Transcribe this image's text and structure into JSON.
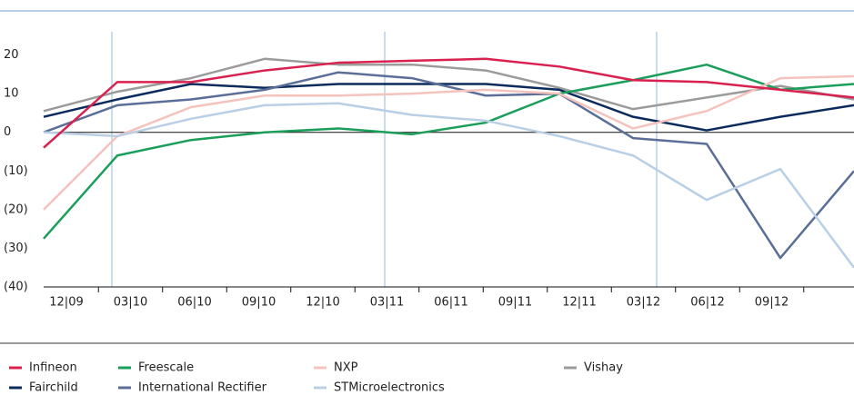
{
  "chart_data": {
    "type": "line",
    "categories": [
      "12|09",
      "03|10",
      "06|10",
      "09|10",
      "12|10",
      "03|11",
      "06|11",
      "09|11",
      "12|11",
      "03|12",
      "06|12",
      "09|12"
    ],
    "ylim": [
      -40,
      26
    ],
    "yticks": [
      20,
      10,
      0,
      {
        "value": -10,
        "label": "(10)"
      },
      {
        "value": -20,
        "label": "(20)"
      },
      {
        "value": -30,
        "label": "(30)"
      },
      {
        "value": -40,
        "label": "(40)"
      }
    ],
    "series": [
      {
        "name": "Infineon",
        "color": "#d9214f",
        "values": [
          -4,
          13,
          13,
          16,
          18,
          18.5,
          19,
          17,
          13.5,
          13,
          11,
          9
        ]
      },
      {
        "name": "Freescale",
        "color": "#1a9e5a",
        "values": [
          -27.5,
          -6,
          -2,
          0,
          1,
          -0.5,
          2.5,
          10,
          13.5,
          17.5,
          11,
          12.5
        ]
      },
      {
        "name": "NXP",
        "color": "#f5c3bd",
        "values": [
          -20,
          -1,
          6.5,
          9.5,
          9.5,
          10,
          11,
          10,
          1,
          5.5,
          14,
          14.5
        ]
      },
      {
        "name": "Vishay",
        "color": "#9b9b9b",
        "values": [
          5.5,
          10.5,
          14,
          19,
          17.5,
          17.5,
          16,
          11.5,
          6,
          9,
          12,
          8.5
        ]
      },
      {
        "name": "Fairchild",
        "color": "#0b2b5c",
        "values": [
          4,
          8.5,
          12.5,
          11.5,
          12.5,
          12.5,
          12.5,
          11,
          4,
          0.5,
          4,
          7
        ]
      },
      {
        "name": "International Rectifier",
        "color": "#5b6e98",
        "values": [
          0,
          7,
          8.5,
          11,
          15.5,
          14,
          9.5,
          10,
          -1.5,
          -3,
          -32.5,
          -10
        ]
      },
      {
        "name": "STMicroelectronics",
        "color": "#b9cfe6",
        "values": [
          0,
          -1,
          3.5,
          7,
          7.5,
          4.5,
          3,
          -1,
          -6,
          -17.5,
          -9.5,
          -35
        ]
      }
    ]
  }
}
